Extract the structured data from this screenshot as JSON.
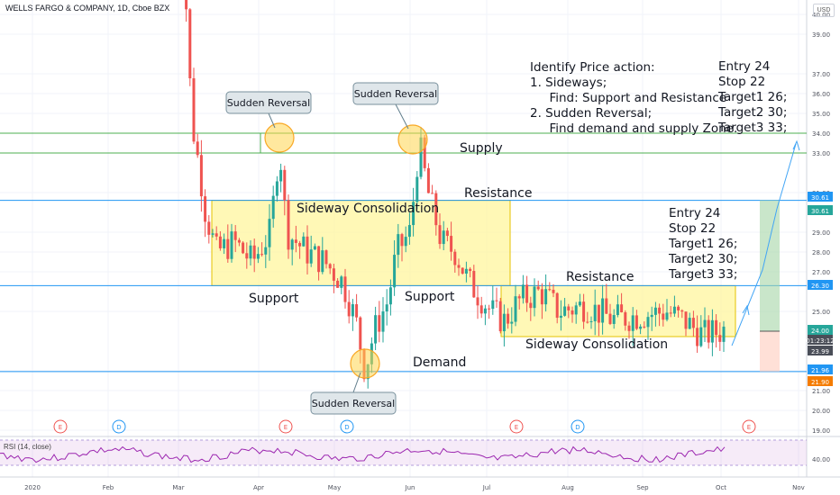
{
  "header": {
    "title": "WELLS FARGO & COMPANY, 1D, Cboe BZX",
    "currency": "USD"
  },
  "rsi": {
    "label": "RSI (14, close)",
    "tick": "40.00"
  },
  "chart_data": {
    "type": "candlestick",
    "y_ticks": [
      "40.00",
      "39.00",
      "37.00",
      "36.00",
      "35.00",
      "34.00",
      "33.00",
      "31.00",
      "29.00",
      "28.00",
      "27.00",
      "25.00",
      "22.00",
      "21.00",
      "20.00",
      "19.00"
    ],
    "x_ticks": [
      "2020",
      "Feb",
      "Mar",
      "Apr",
      "May",
      "Jun",
      "Jul",
      "Aug",
      "Sep",
      "Oct",
      "Nov"
    ],
    "price_labels": [
      {
        "value": "30.61",
        "color": "#2196f3"
      },
      {
        "value": "30.61",
        "color": "#26a69a"
      },
      {
        "value": "26.30",
        "color": "#2196f3"
      },
      {
        "value": "24.00",
        "color": "#26a69a"
      },
      {
        "value": "01:23:12",
        "color": "#4a4e58"
      },
      {
        "value": "23.99",
        "color": "#4a4e58"
      },
      {
        "value": "21.96",
        "color": "#2196f3"
      },
      {
        "value": "21.90",
        "color": "#f57c00"
      }
    ],
    "levels": [
      {
        "name": "supply-top",
        "price": 34.0,
        "color": "#4caf50"
      },
      {
        "name": "supply-bottom",
        "price": 33.0,
        "color": "#4caf50"
      },
      {
        "name": "resistance",
        "price": 30.61,
        "color": "#2196f3"
      },
      {
        "name": "support",
        "price": 26.3,
        "color": "#2196f3"
      },
      {
        "name": "demand",
        "price": 21.96,
        "color": "#2196f3"
      }
    ],
    "annotations": {
      "sudden_reversal": "Sudden Reversal",
      "supply": "Supply",
      "resistance": "Resistance",
      "support": "Support",
      "demand": "Demand",
      "sideway": "Sideway Consolidation",
      "earnings": "E",
      "dividend": "D"
    },
    "note_main": "Identify Price action:\n1. Sideways;\n     Find: Support and Resistance\n2. Sudden Reversal;\n     Find demand and supply Zone.",
    "targets": "Entry 24\nStop 22\nTarget1 26;\nTarget2 30;\nTarget3 33;",
    "colors": {
      "up": "#26a69a",
      "down": "#ef5350",
      "box": "#fff59d",
      "rsi": "#9c27b0"
    }
  }
}
